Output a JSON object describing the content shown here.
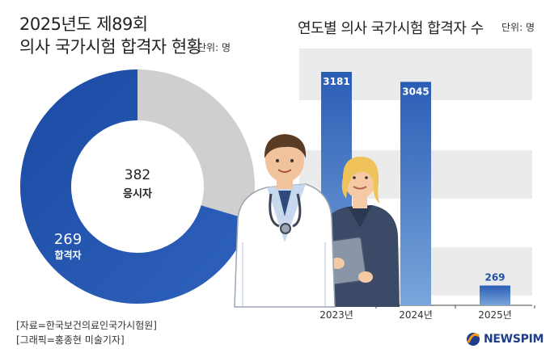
{
  "left_title_line1": "2025년도 제89회",
  "left_title_line2": "의사 국가시험 합격자 현황",
  "left_unit": "단위: 명",
  "right_title": "연도별 의사 국가시험 합격자 수",
  "right_unit": "단위: 명",
  "source_line1": "[자료=한국보건의료인국가시험원]",
  "source_line2": "[그래픽=홍종현 미술기자]",
  "brand": "NEWSPIM",
  "colors": {
    "blue": "#1f4fa8",
    "blue_light": "#5b8fd0",
    "gray": "#cfcfcf",
    "grid_band": "#ebebeb",
    "brand_orange": "#f39a1e"
  },
  "chart_data": [
    {
      "type": "pie",
      "donut": true,
      "total": {
        "value": 382,
        "label": "응시자"
      },
      "slices": [
        {
          "label": "합격자",
          "value": 269
        },
        {
          "label": "",
          "value": 113
        }
      ]
    },
    {
      "type": "bar",
      "categories": [
        "2023년",
        "2024년",
        "2025년"
      ],
      "values": [
        3181,
        3045,
        269
      ],
      "value_labels": [
        "3181",
        "3045",
        "269"
      ],
      "ylim": [
        0,
        3500
      ],
      "grid": true
    }
  ]
}
